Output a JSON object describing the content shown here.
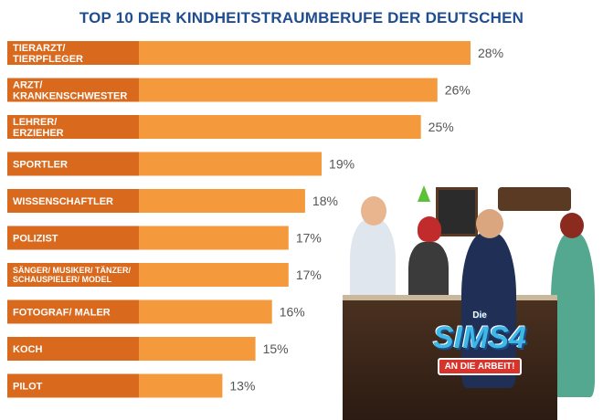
{
  "colors": {
    "title": "#1f4d8f",
    "bar_dark": "#d9691c",
    "bar_light": "#f59a3c",
    "value_text": "#555555"
  },
  "chart_data": {
    "type": "bar",
    "orientation": "horizontal",
    "title": "TOP 10 DER KINDHEITSTRAUMBERUFE DER DEUTSCHEN",
    "unit": "%",
    "xlim": [
      0,
      28
    ],
    "categories": [
      [
        "TIERARZT/",
        "TIERPFLEGER"
      ],
      [
        "ARZT/",
        "KRANKENSCHWESTER"
      ],
      [
        "LEHRER/",
        "ERZIEHER"
      ],
      [
        "SPORTLER"
      ],
      [
        "WISSENSCHAFTLER"
      ],
      [
        "POLIZIST"
      ],
      [
        "SÄNGER/ MUSIKER/ TÄNZER/",
        "SCHAUSPIELER/ MODEL"
      ],
      [
        "FOTOGRAF/ MALER"
      ],
      [
        "KOCH"
      ],
      [
        "PILOT"
      ]
    ],
    "values": [
      28,
      26,
      25,
      19,
      18,
      17,
      17,
      16,
      15,
      13
    ],
    "value_labels": [
      "28%",
      "26%",
      "25%",
      "19%",
      "18%",
      "17%",
      "17%",
      "16%",
      "15%",
      "13%"
    ]
  },
  "illustration": {
    "logo_title": "SIMS4",
    "logo_prefix": "Die",
    "logo_subtitle": "AN DIE ARBEIT!"
  }
}
